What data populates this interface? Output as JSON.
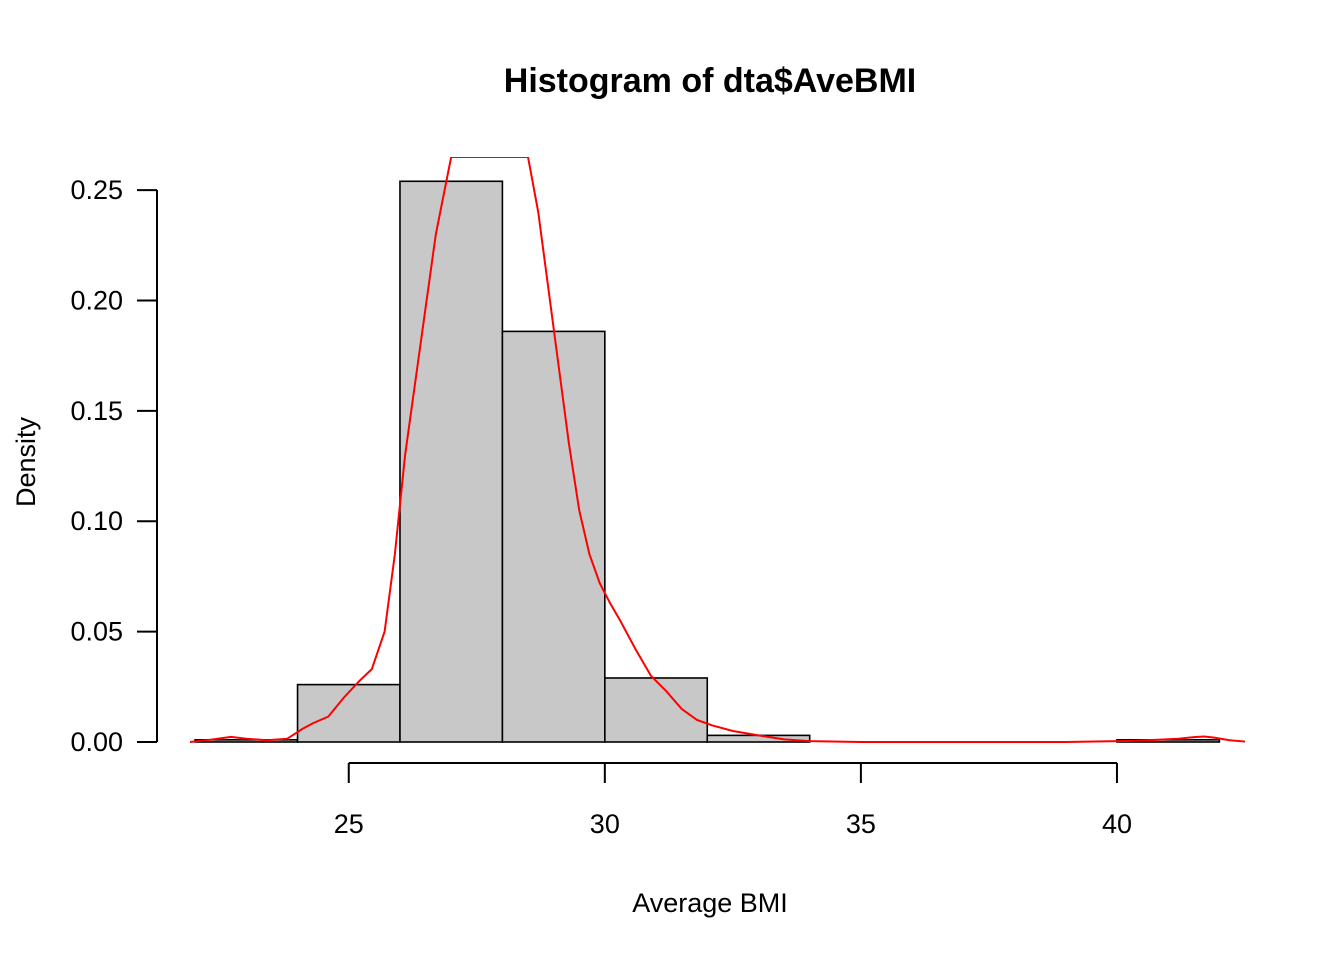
{
  "chart_data": {
    "type": "bar",
    "subtype": "histogram",
    "title": "Histogram of dta$AveBMI",
    "xlabel": "Average BMI",
    "ylabel": "Density",
    "bins": [
      {
        "start": 22,
        "end": 24,
        "density": 0.001
      },
      {
        "start": 24,
        "end": 26,
        "density": 0.026
      },
      {
        "start": 26,
        "end": 28,
        "density": 0.254
      },
      {
        "start": 28,
        "end": 30,
        "density": 0.186
      },
      {
        "start": 30,
        "end": 32,
        "density": 0.029
      },
      {
        "start": 32,
        "end": 34,
        "density": 0.003
      },
      {
        "start": 34,
        "end": 36,
        "density": 0.0
      },
      {
        "start": 36,
        "end": 38,
        "density": 0.0
      },
      {
        "start": 38,
        "end": 40,
        "density": 0.0
      },
      {
        "start": 40,
        "end": 42,
        "density": 0.001
      }
    ],
    "x_ticks": [
      25,
      30,
      35,
      40
    ],
    "x_tick_labels": [
      "25",
      "30",
      "35",
      "40"
    ],
    "y_ticks": [
      0,
      0.05,
      0.1,
      0.15,
      0.2,
      0.25
    ],
    "y_tick_labels": [
      "0.00",
      "0.05",
      "0.10",
      "0.15",
      "0.20",
      "0.25"
    ],
    "xlim": [
      21.9,
      42.5
    ],
    "ylim": [
      0,
      0.265
    ],
    "grid": false,
    "bar_color": "#c8c8c8",
    "bar_edge_color": "#000000",
    "density_curve": {
      "name": "density",
      "color": "#ff0000",
      "x": [
        21.9,
        22.3,
        22.7,
        23.0,
        23.4,
        23.8,
        24.1,
        24.3,
        24.6,
        24.9,
        25.2,
        25.45,
        25.7,
        25.9,
        26.1,
        26.4,
        26.7,
        27.0,
        27.1,
        28.5,
        28.7,
        28.9,
        29.1,
        29.3,
        29.5,
        29.7,
        29.9,
        30.1,
        30.3,
        30.6,
        30.9,
        31.2,
        31.5,
        31.8,
        32.1,
        32.5,
        33.0,
        33.5,
        34.0,
        35.0,
        37.0,
        39.0,
        40.3,
        40.8,
        41.2,
        41.5,
        41.7,
        41.9,
        42.2,
        42.5
      ],
      "y": [
        0.0,
        0.001,
        0.0023,
        0.0015,
        0.0008,
        0.0015,
        0.006,
        0.0085,
        0.0115,
        0.02,
        0.0275,
        0.033,
        0.05,
        0.085,
        0.13,
        0.18,
        0.23,
        0.265,
        0.265,
        0.265,
        0.24,
        0.205,
        0.17,
        0.135,
        0.105,
        0.085,
        0.072,
        0.063,
        0.055,
        0.042,
        0.03,
        0.023,
        0.015,
        0.01,
        0.0075,
        0.005,
        0.003,
        0.0012,
        0.0004,
        0.0,
        0.0,
        0.0,
        0.0005,
        0.001,
        0.0015,
        0.0022,
        0.0025,
        0.002,
        0.0008,
        0.0002
      ]
    }
  }
}
